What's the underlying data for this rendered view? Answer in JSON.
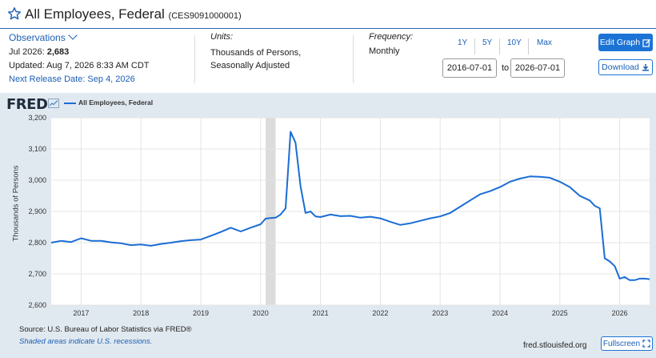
{
  "header": {
    "title": "All Employees, Federal",
    "series_id": "(CES9091000001)",
    "icon": "star-outline-icon",
    "accent_color": "#2b66b7"
  },
  "observations": {
    "label": "Observations",
    "latest_label": "Jul 2026:",
    "latest_value": "2,683",
    "updated": "Updated: Aug 7, 2026 8:33 AM CDT",
    "next_release": "Next Release Date: Sep 4, 2026"
  },
  "units": {
    "label": "Units:",
    "line1": "Thousands of Persons,",
    "line2": "Seasonally Adjusted"
  },
  "frequency": {
    "label": "Frequency:",
    "value": "Monthly"
  },
  "ranges": [
    "1Y",
    "5Y",
    "10Y",
    "Max"
  ],
  "date_range": {
    "start": "2016-07-01",
    "to_label": "to",
    "end": "2026-07-01"
  },
  "buttons": {
    "edit_graph": "Edit Graph",
    "download": "Download",
    "fullscreen": "Fullscreen",
    "primary_color": "#1c73d6"
  },
  "branding": {
    "logo": "FRED",
    "site": "fred.stlouisfed.org"
  },
  "footer": {
    "source": "Source: U.S. Bureau of Labor Statistics via FRED®",
    "shaded_note": "Shaded areas indicate U.S. recessions."
  },
  "chart_data": {
    "type": "line",
    "title": "",
    "legend": [
      "All Employees, Federal"
    ],
    "ylabel": "Thousands of Persons",
    "xlabel": "",
    "ylim": [
      2600,
      3200
    ],
    "xlim": [
      "2016-07-01",
      "2026-07-01"
    ],
    "yticks": [
      "2,600",
      "2,700",
      "2,800",
      "2,900",
      "3,000",
      "3,100",
      "3,200"
    ],
    "xticks": [
      "2017",
      "2018",
      "2019",
      "2020",
      "2021",
      "2022",
      "2023",
      "2024",
      "2025",
      "2026"
    ],
    "grid": true,
    "line_color": "#1a6dd4",
    "recession": {
      "start": "2020-02-01",
      "end": "2020-04-01"
    },
    "series": [
      {
        "name": "All Employees, Federal",
        "x": [
          "2016-07",
          "2016-09",
          "2016-11",
          "2017-01",
          "2017-03",
          "2017-05",
          "2017-07",
          "2017-09",
          "2017-11",
          "2018-01",
          "2018-03",
          "2018-05",
          "2018-07",
          "2018-09",
          "2018-11",
          "2019-01",
          "2019-03",
          "2019-05",
          "2019-07",
          "2019-09",
          "2019-11",
          "2020-01",
          "2020-02",
          "2020-03",
          "2020-04",
          "2020-05",
          "2020-06",
          "2020-07",
          "2020-08",
          "2020-09",
          "2020-10",
          "2020-11",
          "2020-12",
          "2021-01",
          "2021-03",
          "2021-05",
          "2021-07",
          "2021-09",
          "2021-11",
          "2022-01",
          "2022-03",
          "2022-05",
          "2022-07",
          "2022-09",
          "2022-11",
          "2023-01",
          "2023-03",
          "2023-05",
          "2023-07",
          "2023-09",
          "2023-11",
          "2024-01",
          "2024-03",
          "2024-05",
          "2024-07",
          "2024-09",
          "2024-11",
          "2025-01",
          "2025-03",
          "2025-05",
          "2025-07",
          "2025-08",
          "2025-09",
          "2025-10",
          "2025-11",
          "2025-12",
          "2026-01",
          "2026-02",
          "2026-03",
          "2026-04",
          "2026-05",
          "2026-06",
          "2026-07"
        ],
        "values": [
          2800,
          2806,
          2802,
          2814,
          2806,
          2806,
          2801,
          2798,
          2792,
          2794,
          2790,
          2796,
          2800,
          2805,
          2808,
          2810,
          2822,
          2834,
          2848,
          2836,
          2848,
          2859,
          2877,
          2879,
          2880,
          2890,
          2910,
          3155,
          3120,
          2980,
          2895,
          2900,
          2884,
          2882,
          2890,
          2885,
          2886,
          2880,
          2883,
          2878,
          2867,
          2857,
          2862,
          2870,
          2878,
          2884,
          2895,
          2915,
          2935,
          2955,
          2965,
          2978,
          2995,
          3005,
          3012,
          3011,
          3008,
          2995,
          2978,
          2950,
          2935,
          2918,
          2910,
          2750,
          2740,
          2725,
          2685,
          2690,
          2680,
          2680,
          2685,
          2685,
          2683
        ]
      }
    ]
  }
}
